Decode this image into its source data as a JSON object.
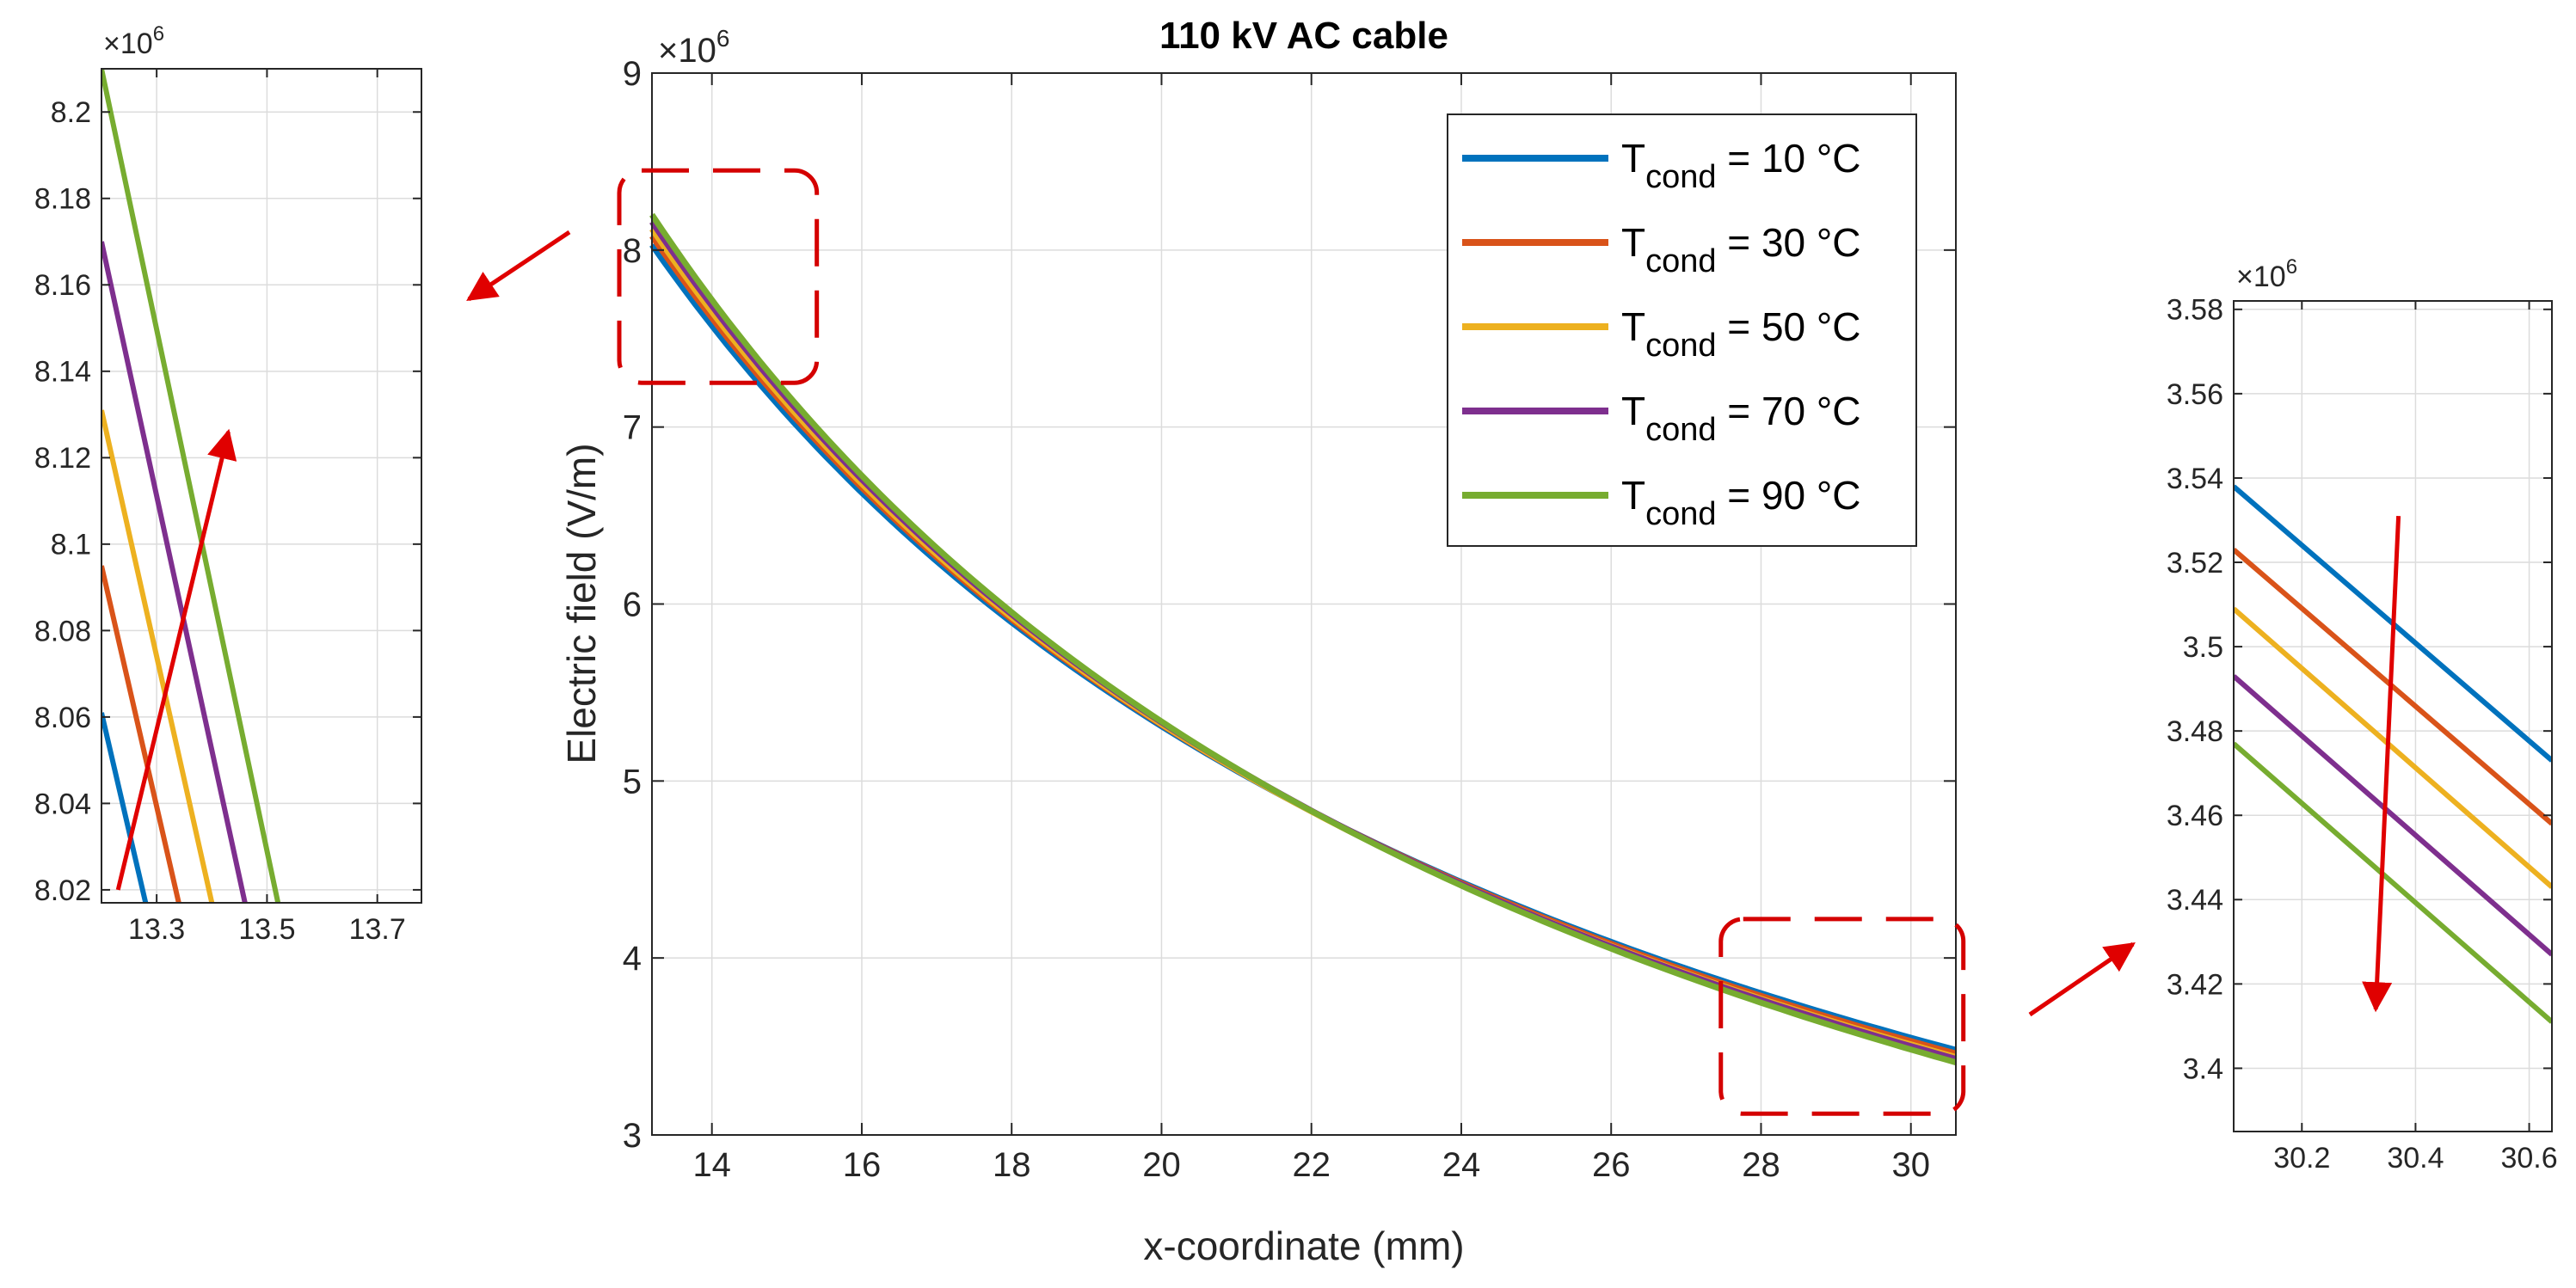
{
  "chart_data": [
    {
      "id": "main",
      "type": "line",
      "title": "110 kV AC cable",
      "xlabel": "x-coordinate (mm)",
      "ylabel": "Electric field (V/m)",
      "y_multiplier": "×10",
      "y_exponent": "6",
      "xlim": [
        13.2,
        30.6
      ],
      "ylim": [
        3,
        9
      ],
      "xticks": [
        14,
        16,
        18,
        20,
        22,
        24,
        26,
        28,
        30
      ],
      "yticks": [
        3,
        4,
        5,
        6,
        7,
        8,
        9
      ],
      "grid": true,
      "legend_position": "top-right",
      "series": [
        {
          "name": "T",
          "sub": "cond",
          "suffix": " = 10 °C",
          "color": "#0072BD",
          "x": [
            13.2,
            30.6
          ],
          "y": [
            8.03,
            3.48
          ]
        },
        {
          "name": "T",
          "sub": "cond",
          "suffix": " = 30 °C",
          "color": "#D95319",
          "x": [
            13.2,
            30.6
          ],
          "y": [
            8.08,
            3.46
          ]
        },
        {
          "name": "T",
          "sub": "cond",
          "suffix": " = 50 °C",
          "color": "#EDB120",
          "x": [
            13.2,
            30.6
          ],
          "y": [
            8.12,
            3.44
          ]
        },
        {
          "name": "T",
          "sub": "cond",
          "suffix": " = 70 °C",
          "color": "#7E2F8E",
          "x": [
            13.2,
            30.6
          ],
          "y": [
            8.16,
            3.43
          ]
        },
        {
          "name": "T",
          "sub": "cond",
          "suffix": " = 90 °C",
          "color": "#77AC30",
          "x": [
            13.2,
            30.6
          ],
          "y": [
            8.2,
            3.41
          ]
        }
      ],
      "zoom_boxes": [
        {
          "x": [
            13.2,
            15.4
          ],
          "y": [
            7.25,
            8.45
          ]
        },
        {
          "x": [
            27.9,
            30.7
          ],
          "y": [
            3.12,
            4.22
          ]
        }
      ]
    },
    {
      "id": "zoom-left",
      "type": "line",
      "y_multiplier": "×10",
      "y_exponent": "6",
      "xlim": [
        13.2,
        13.78
      ],
      "ylim": [
        8.017,
        8.21
      ],
      "xticks": [
        13.3,
        13.5,
        13.7
      ],
      "xticklabels": [
        "13.3",
        "13.5",
        "13.7"
      ],
      "yticks": [
        8.02,
        8.04,
        8.06,
        8.08,
        8.1,
        8.12,
        8.14,
        8.16,
        8.18,
        8.2
      ],
      "yticklabels": [
        "8.02",
        "8.04",
        "8.06",
        "8.08",
        "8.1",
        "8.12",
        "8.14",
        "8.16",
        "8.18",
        "8.2"
      ],
      "grid": true,
      "series": [
        {
          "color": "#0072BD",
          "x": [
            13.2,
            13.28
          ],
          "y": [
            8.061,
            8.017
          ]
        },
        {
          "color": "#D95319",
          "x": [
            13.2,
            13.34
          ],
          "y": [
            8.095,
            8.017
          ]
        },
        {
          "color": "#EDB120",
          "x": [
            13.2,
            13.4
          ],
          "y": [
            8.131,
            8.017
          ]
        },
        {
          "color": "#7E2F8E",
          "x": [
            13.2,
            13.46
          ],
          "y": [
            8.17,
            8.017
          ]
        },
        {
          "color": "#77AC30",
          "x": [
            13.2,
            13.52
          ],
          "y": [
            8.21,
            8.017
          ]
        }
      ],
      "trend_arrow": {
        "from": [
          13.23,
          8.02
        ],
        "to": [
          13.43,
          8.126
        ]
      }
    },
    {
      "id": "zoom-right",
      "type": "line",
      "y_multiplier": "×10",
      "y_exponent": "6",
      "xlim": [
        30.08,
        30.64
      ],
      "ylim": [
        3.385,
        3.582
      ],
      "xticks": [
        30.2,
        30.4,
        30.6
      ],
      "xticklabels": [
        "30.2",
        "30.4",
        "30.6"
      ],
      "yticks": [
        3.4,
        3.42,
        3.44,
        3.46,
        3.48,
        3.5,
        3.52,
        3.54,
        3.56,
        3.58
      ],
      "yticklabels": [
        "3.4",
        "3.42",
        "3.44",
        "3.46",
        "3.48",
        "3.5",
        "3.52",
        "3.54",
        "3.56",
        "3.58"
      ],
      "grid": true,
      "series": [
        {
          "color": "#0072BD",
          "x": [
            30.08,
            30.64
          ],
          "y": [
            3.538,
            3.473
          ]
        },
        {
          "color": "#D95319",
          "x": [
            30.08,
            30.64
          ],
          "y": [
            3.523,
            3.458
          ]
        },
        {
          "color": "#EDB120",
          "x": [
            30.08,
            30.64
          ],
          "y": [
            3.509,
            3.443
          ]
        },
        {
          "color": "#7E2F8E",
          "x": [
            30.08,
            30.64
          ],
          "y": [
            3.493,
            3.427
          ]
        },
        {
          "color": "#77AC30",
          "x": [
            30.08,
            30.64
          ],
          "y": [
            3.477,
            3.411
          ]
        }
      ],
      "trend_arrow": {
        "from": [
          30.37,
          3.531
        ],
        "to": [
          30.33,
          3.414
        ]
      }
    }
  ],
  "colors": {
    "zoom_box": "#D40000",
    "pointer_arrow": "#E00000"
  }
}
